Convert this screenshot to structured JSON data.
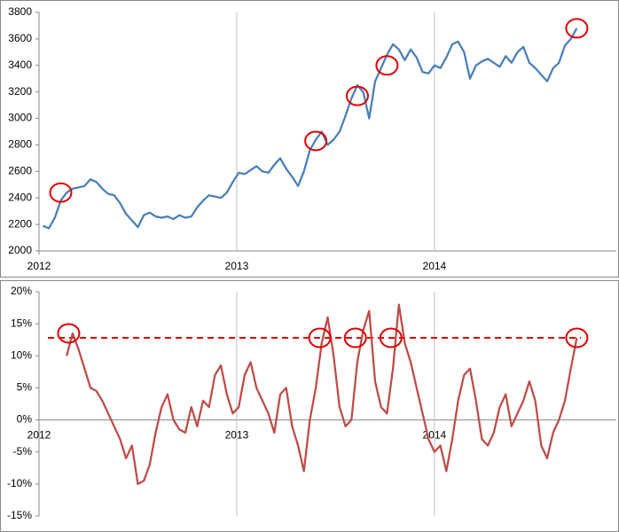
{
  "chart_data": [
    {
      "type": "line",
      "xlim": [
        2012,
        2014.92
      ],
      "xticks": [
        2012,
        2013,
        2014
      ],
      "ylim": [
        2000,
        3800
      ],
      "yticks": [
        2000,
        2200,
        2400,
        2600,
        2800,
        3000,
        3200,
        3400,
        3600,
        3800
      ],
      "grid": "x",
      "zero_line": false,
      "series": [
        {
          "color": "#4a7ebb",
          "x": [
            2012.02,
            2012.05,
            2012.08,
            2012.11,
            2012.14,
            2012.17,
            2012.2,
            2012.23,
            2012.26,
            2012.29,
            2012.32,
            2012.35,
            2012.38,
            2012.41,
            2012.44,
            2012.47,
            2012.5,
            2012.53,
            2012.56,
            2012.59,
            2012.62,
            2012.65,
            2012.68,
            2012.71,
            2012.74,
            2012.77,
            2012.8,
            2012.83,
            2012.86,
            2012.89,
            2012.92,
            2012.95,
            2012.98,
            2013.01,
            2013.04,
            2013.07,
            2013.1,
            2013.13,
            2013.16,
            2013.19,
            2013.22,
            2013.25,
            2013.28,
            2013.31,
            2013.34,
            2013.37,
            2013.4,
            2013.43,
            2013.46,
            2013.49,
            2013.52,
            2013.55,
            2013.58,
            2013.61,
            2013.64,
            2013.67,
            2013.7,
            2013.73,
            2013.76,
            2013.79,
            2013.82,
            2013.85,
            2013.88,
            2013.91,
            2013.94,
            2013.97,
            2014.0,
            2014.03,
            2014.06,
            2014.09,
            2014.12,
            2014.15,
            2014.18,
            2014.21,
            2014.24,
            2014.27,
            2014.3,
            2014.33,
            2014.36,
            2014.39,
            2014.42,
            2014.45,
            2014.48,
            2014.51,
            2014.54,
            2014.57,
            2014.6,
            2014.63,
            2014.66,
            2014.69,
            2014.72
          ],
          "values": [
            2190,
            2170,
            2250,
            2380,
            2440,
            2470,
            2480,
            2490,
            2540,
            2520,
            2470,
            2430,
            2420,
            2360,
            2280,
            2230,
            2180,
            2270,
            2290,
            2260,
            2250,
            2260,
            2240,
            2270,
            2250,
            2260,
            2330,
            2380,
            2420,
            2410,
            2400,
            2440,
            2520,
            2590,
            2580,
            2610,
            2640,
            2600,
            2590,
            2650,
            2700,
            2620,
            2560,
            2490,
            2600,
            2760,
            2840,
            2900,
            2800,
            2840,
            2900,
            3020,
            3150,
            3250,
            3200,
            3000,
            3280,
            3380,
            3480,
            3560,
            3520,
            3440,
            3520,
            3460,
            3350,
            3340,
            3400,
            3380,
            3460,
            3560,
            3580,
            3500,
            3300,
            3400,
            3430,
            3450,
            3420,
            3390,
            3470,
            3420,
            3500,
            3540,
            3420,
            3380,
            3330,
            3280,
            3380,
            3420,
            3550,
            3600,
            3680
          ]
        }
      ],
      "highlight_color": "#e00000",
      "highlights": [
        {
          "x": 2012.11,
          "y": 2440
        },
        {
          "x": 2013.4,
          "y": 2830
        },
        {
          "x": 2013.61,
          "y": 3170
        },
        {
          "x": 2013.76,
          "y": 3400
        },
        {
          "x": 2014.72,
          "y": 3680
        }
      ]
    },
    {
      "type": "line",
      "xlim": [
        2012,
        2014.92
      ],
      "xticks": [
        2012,
        2013,
        2014
      ],
      "ylim": [
        -15,
        20
      ],
      "yticks": [
        {
          "value": -15,
          "label": "-15%"
        },
        {
          "value": -10,
          "label": "-10%"
        },
        {
          "value": -5,
          "label": "-5%"
        },
        {
          "value": 0,
          "label": "0%"
        },
        {
          "value": 5,
          "label": "5%"
        },
        {
          "value": 10,
          "label": "10%"
        },
        {
          "value": 15,
          "label": "15%"
        },
        {
          "value": 20,
          "label": "20%"
        }
      ],
      "grid": "x",
      "zero_line": true,
      "series": [
        {
          "color": "#be4b48",
          "x": [
            2012.14,
            2012.17,
            2012.2,
            2012.23,
            2012.26,
            2012.29,
            2012.32,
            2012.35,
            2012.38,
            2012.41,
            2012.44,
            2012.47,
            2012.5,
            2012.53,
            2012.56,
            2012.59,
            2012.62,
            2012.65,
            2012.68,
            2012.71,
            2012.74,
            2012.77,
            2012.8,
            2012.83,
            2012.86,
            2012.89,
            2012.92,
            2012.95,
            2012.98,
            2013.01,
            2013.04,
            2013.07,
            2013.1,
            2013.13,
            2013.16,
            2013.19,
            2013.22,
            2013.25,
            2013.28,
            2013.31,
            2013.34,
            2013.37,
            2013.4,
            2013.43,
            2013.46,
            2013.49,
            2013.52,
            2013.55,
            2013.58,
            2013.61,
            2013.64,
            2013.67,
            2013.7,
            2013.73,
            2013.76,
            2013.79,
            2013.82,
            2013.85,
            2013.88,
            2013.91,
            2013.94,
            2013.97,
            2014.0,
            2014.03,
            2014.06,
            2014.09,
            2014.12,
            2014.15,
            2014.18,
            2014.21,
            2014.24,
            2014.27,
            2014.3,
            2014.33,
            2014.36,
            2014.39,
            2014.42,
            2014.45,
            2014.48,
            2014.51,
            2014.54,
            2014.57,
            2014.6,
            2014.63,
            2014.66,
            2014.69,
            2014.72
          ],
          "values": [
            10,
            13.5,
            11,
            8,
            5,
            4.5,
            3,
            1,
            -1,
            -3,
            -6,
            -4,
            -10,
            -9.5,
            -7,
            -2,
            2,
            4,
            0,
            -1.5,
            -2,
            2,
            -1,
            3,
            2,
            7,
            8.5,
            4,
            1,
            2,
            7,
            9,
            5,
            3,
            1,
            -2,
            4,
            5,
            -1,
            -4,
            -8,
            0,
            5,
            12,
            16,
            10,
            2,
            -1,
            0,
            9,
            14,
            17,
            6,
            2,
            1,
            8,
            18,
            12,
            9,
            5,
            1,
            -3,
            -5,
            -4,
            -8,
            -3,
            3,
            7,
            8,
            3,
            -3,
            -4,
            -2,
            2,
            4,
            -1,
            1,
            3,
            6,
            3,
            -4,
            -6,
            -2,
            0,
            3,
            8,
            12.8
          ]
        }
      ],
      "threshold": 12.8,
      "highlight_color": "#e00000",
      "highlights": [
        {
          "x": 2012.15,
          "y": 13.5
        },
        {
          "x": 2013.42,
          "y": 12.8
        },
        {
          "x": 2013.6,
          "y": 12.8
        },
        {
          "x": 2013.78,
          "y": 12.8
        },
        {
          "x": 2014.72,
          "y": 12.8
        }
      ]
    }
  ]
}
